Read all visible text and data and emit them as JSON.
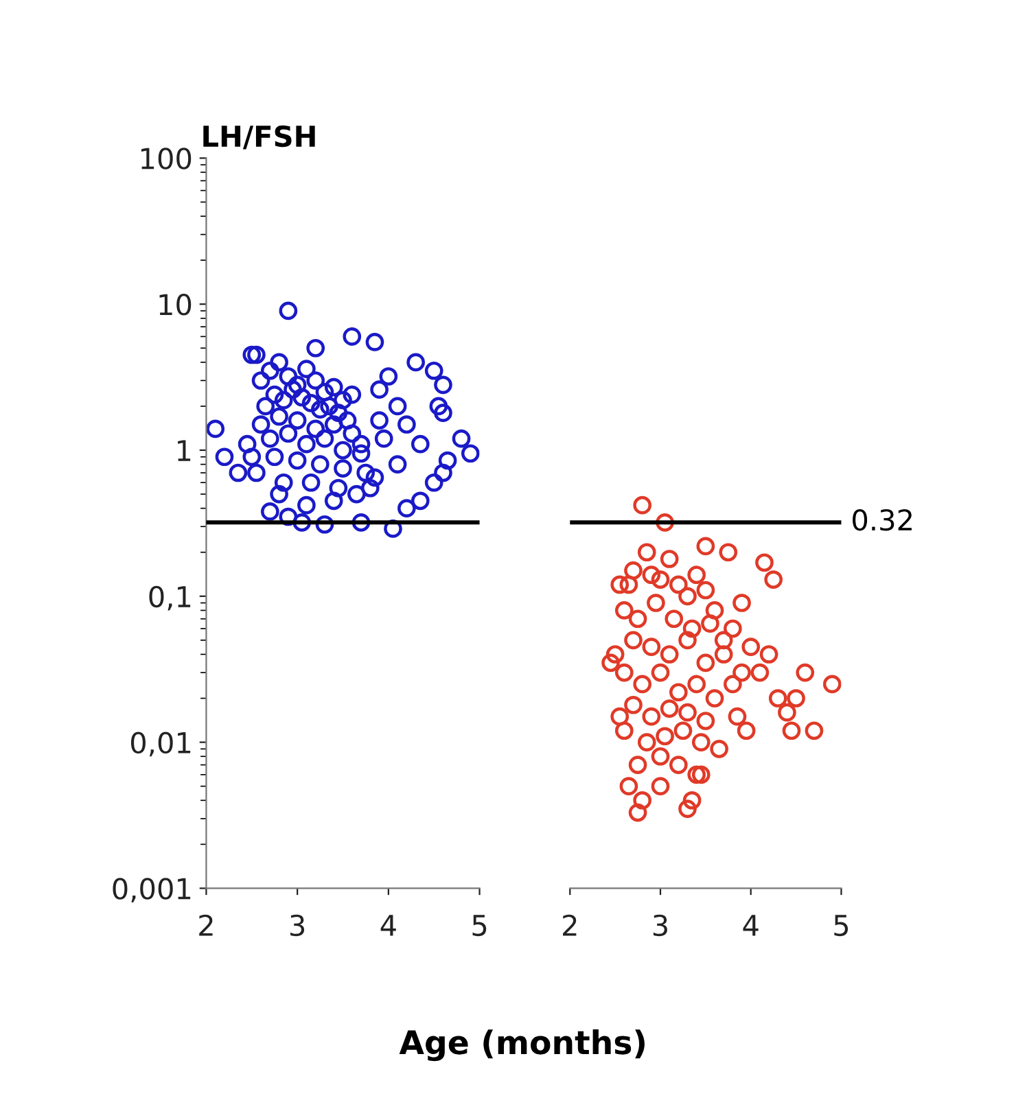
{
  "chart_data": [
    {
      "type": "scatter",
      "title": "LH/FSH",
      "xlabel": "Age (months)",
      "xlim": [
        2,
        5
      ],
      "xticks": [
        2,
        3,
        4,
        5
      ],
      "ylim": [
        0.001,
        100
      ],
      "yticks": [
        {
          "value": 0.001,
          "label": "0,001"
        },
        {
          "value": 0.01,
          "label": "0,01"
        },
        {
          "value": 0.1,
          "label": "0,1"
        },
        1,
        10,
        100
      ],
      "log": "y",
      "marker": "circle",
      "grid": false,
      "legend": false,
      "ref_lines": [
        {
          "axis": "y",
          "value": 0.32,
          "color": "#000000"
        }
      ],
      "series": [
        {
          "color": "#1a1ac8",
          "x": [
            2.1,
            2.9,
            2.5,
            2.55,
            3.6,
            3.85,
            3.2,
            4.3,
            4.5,
            4.6,
            4.55,
            4.6,
            4.8,
            4.9,
            4.65,
            4.6,
            4.5,
            4.2,
            4.35,
            3.3,
            3.7,
            4.05,
            3.05,
            2.9,
            2.7,
            2.35,
            2.2,
            4.0,
            3.9,
            4.1,
            4.2,
            3.95,
            4.35,
            4.1,
            2.6,
            2.7,
            2.8,
            2.9,
            3.0,
            3.1,
            3.2,
            3.3,
            3.4,
            3.5,
            2.65,
            2.75,
            2.85,
            2.95,
            3.05,
            3.15,
            3.25,
            3.35,
            3.45,
            3.55,
            2.6,
            2.8,
            3.0,
            3.2,
            3.4,
            3.6,
            2.7,
            2.9,
            3.1,
            3.3,
            3.5,
            3.7,
            2.5,
            2.75,
            3.0,
            3.25,
            3.5,
            3.75,
            2.55,
            2.85,
            3.15,
            3.45,
            3.65,
            3.8,
            2.45,
            3.9,
            3.7,
            3.6,
            3.85,
            3.4,
            3.1,
            2.8
          ],
          "values": [
            1.4,
            9,
            4.5,
            4.5,
            6,
            5.5,
            5,
            4,
            3.5,
            2.8,
            2,
            1.8,
            1.2,
            0.95,
            0.85,
            0.7,
            0.6,
            0.4,
            0.45,
            0.31,
            0.32,
            0.29,
            0.32,
            0.35,
            0.38,
            0.7,
            0.9,
            3.2,
            2.6,
            2.0,
            1.5,
            1.2,
            1.1,
            0.8,
            3.0,
            3.5,
            4.0,
            3.2,
            2.8,
            3.6,
            3.0,
            2.5,
            2.7,
            2.2,
            2.0,
            2.4,
            2.2,
            2.6,
            2.3,
            2.1,
            1.9,
            2.0,
            1.8,
            1.6,
            1.5,
            1.7,
            1.6,
            1.4,
            1.5,
            1.3,
            1.2,
            1.3,
            1.1,
            1.2,
            1.0,
            1.1,
            0.9,
            0.9,
            0.85,
            0.8,
            0.75,
            0.7,
            0.7,
            0.6,
            0.6,
            0.55,
            0.5,
            0.55,
            1.1,
            1.6,
            0.95,
            2.4,
            0.65,
            0.45,
            0.42,
            0.5
          ]
        }
      ]
    },
    {
      "type": "scatter",
      "xlim": [
        2,
        5
      ],
      "xticks": [
        2,
        3,
        4,
        5
      ],
      "ylim": [
        0.001,
        100
      ],
      "log": "y",
      "marker": "circle",
      "grid": false,
      "legend": false,
      "tick_labels": "x",
      "ref_lines": [
        {
          "axis": "y",
          "value": 0.32,
          "label": "0.32",
          "color": "#000000"
        }
      ],
      "series": [
        {
          "color": "#e03a28",
          "x": [
            2.8,
            3.05,
            2.85,
            3.5,
            3.75,
            4.15,
            4.25,
            3.9,
            4.9,
            4.6,
            4.5,
            4.4,
            4.7,
            4.45,
            4.1,
            2.75,
            2.8,
            3.3,
            3.35,
            2.55,
            2.65,
            2.7,
            2.9,
            3.0,
            3.1,
            3.2,
            3.3,
            3.4,
            3.5,
            3.6,
            2.6,
            2.75,
            2.95,
            3.15,
            3.35,
            3.55,
            3.7,
            2.5,
            2.7,
            2.9,
            3.1,
            3.3,
            3.5,
            3.7,
            3.9,
            2.6,
            2.8,
            3.0,
            3.2,
            3.4,
            3.6,
            3.8,
            2.7,
            2.9,
            3.1,
            3.3,
            3.5,
            2.6,
            2.85,
            3.05,
            3.25,
            3.45,
            3.65,
            2.75,
            3.0,
            3.2,
            3.4,
            4.0,
            4.2,
            4.3,
            3.85,
            3.95,
            2.45,
            2.55,
            3.8,
            2.65,
            3.0,
            3.45
          ],
          "values": [
            0.42,
            0.32,
            0.2,
            0.22,
            0.2,
            0.17,
            0.13,
            0.09,
            0.025,
            0.03,
            0.02,
            0.016,
            0.012,
            0.012,
            0.03,
            0.0033,
            0.004,
            0.0035,
            0.004,
            0.12,
            0.12,
            0.15,
            0.14,
            0.13,
            0.18,
            0.12,
            0.1,
            0.14,
            0.11,
            0.08,
            0.08,
            0.07,
            0.09,
            0.07,
            0.06,
            0.065,
            0.05,
            0.04,
            0.05,
            0.045,
            0.04,
            0.05,
            0.035,
            0.04,
            0.03,
            0.03,
            0.025,
            0.03,
            0.022,
            0.025,
            0.02,
            0.025,
            0.018,
            0.015,
            0.017,
            0.016,
            0.014,
            0.012,
            0.01,
            0.011,
            0.012,
            0.01,
            0.009,
            0.007,
            0.008,
            0.007,
            0.006,
            0.045,
            0.04,
            0.02,
            0.015,
            0.012,
            0.035,
            0.015,
            0.06,
            0.005,
            0.005,
            0.006
          ]
        }
      ]
    }
  ]
}
